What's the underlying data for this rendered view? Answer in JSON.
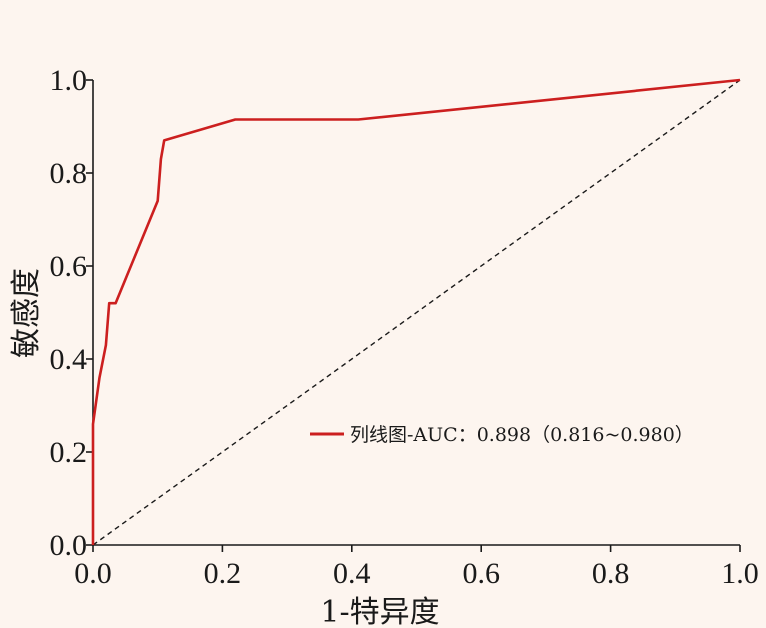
{
  "chart_data": {
    "type": "line",
    "xlabel": "1-特异度",
    "ylabel": "敏感度",
    "xlim": [
      0,
      1
    ],
    "ylim": [
      0,
      1
    ],
    "x_ticks": [
      "0.0",
      "0.2",
      "0.4",
      "0.6",
      "0.8",
      "1.0"
    ],
    "y_ticks": [
      "0.0",
      "0.2",
      "0.4",
      "0.6",
      "0.8",
      "1.0"
    ],
    "grid": false,
    "legend_position": "center-right",
    "series": [
      {
        "name": "列线图-AUC：0.898（0.816~0.980）",
        "color": "#cc1f1f",
        "style": "solid",
        "x": [
          0,
          0,
          0.01,
          0.02,
          0.025,
          0.035,
          0.1,
          0.105,
          0.11,
          0.22,
          0.41,
          1.0
        ],
        "y": [
          0,
          0.26,
          0.36,
          0.43,
          0.52,
          0.52,
          0.74,
          0.83,
          0.87,
          0.915,
          0.915,
          1.0
        ]
      },
      {
        "name": "",
        "color": "#1a1a1a",
        "style": "dashed",
        "x": [
          0,
          1
        ],
        "y": [
          0,
          1
        ]
      }
    ]
  }
}
